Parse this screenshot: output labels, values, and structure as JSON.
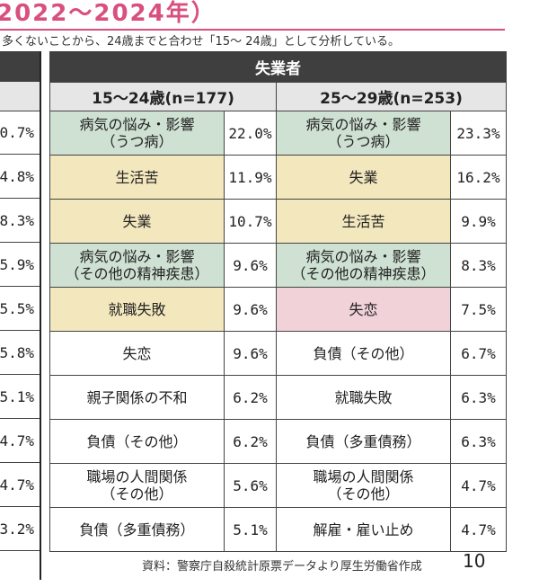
{
  "title": "2022～2024年）",
  "note": "多くないことから、24歳までと合わせ「15～ 24歳」として分析している。",
  "left_column_values": [
    "0.7%",
    "4.8%",
    "8.3%",
    "5.9%",
    "5.5%",
    "5.8%",
    "5.1%",
    "4.7%",
    "4.7%",
    "3.2%"
  ],
  "table": {
    "header": "失業者",
    "groups": [
      {
        "label": "15～24歳(n=177)",
        "rows": [
          {
            "reason": "病気の悩み・影響\n（うつ病）",
            "pct": "22.0%",
            "color": "#cfe1d3"
          },
          {
            "reason": "生活苦",
            "pct": "11.9%",
            "color": "#f3e7bd"
          },
          {
            "reason": "失業",
            "pct": "10.7%",
            "color": "#f3e7bd"
          },
          {
            "reason": "病気の悩み・影響\n（その他の精神疾患）",
            "pct": "9.6%",
            "color": "#cfe1d3"
          },
          {
            "reason": "就職失敗",
            "pct": "9.6%",
            "color": "#f3e7bd"
          },
          {
            "reason": "失恋",
            "pct": "9.6%",
            "color": "#ffffff"
          },
          {
            "reason": "親子関係の不和",
            "pct": "6.2%",
            "color": "#ffffff"
          },
          {
            "reason": "負債（その他）",
            "pct": "6.2%",
            "color": "#ffffff"
          },
          {
            "reason": "職場の人間関係\n（その他）",
            "pct": "5.6%",
            "color": "#ffffff"
          },
          {
            "reason": "負債（多重債務）",
            "pct": "5.1%",
            "color": "#ffffff"
          }
        ]
      },
      {
        "label": "25～29歳(n=253)",
        "rows": [
          {
            "reason": "病気の悩み・影響\n（うつ病）",
            "pct": "23.3%",
            "color": "#cfe1d3"
          },
          {
            "reason": "失業",
            "pct": "16.2%",
            "color": "#f3e7bd"
          },
          {
            "reason": "生活苦",
            "pct": "9.9%",
            "color": "#f3e7bd"
          },
          {
            "reason": "病気の悩み・影響\n（その他の精神疾患）",
            "pct": "8.3%",
            "color": "#cfe1d3"
          },
          {
            "reason": "失恋",
            "pct": "7.5%",
            "color": "#f2d2d9"
          },
          {
            "reason": "負債（その他）",
            "pct": "6.7%",
            "color": "#ffffff"
          },
          {
            "reason": "就職失敗",
            "pct": "6.3%",
            "color": "#ffffff"
          },
          {
            "reason": "負債（多重債務）",
            "pct": "6.3%",
            "color": "#ffffff"
          },
          {
            "reason": "職場の人間関係\n（その他）",
            "pct": "4.7%",
            "color": "#ffffff"
          },
          {
            "reason": "解雇・雇い止め",
            "pct": "4.7%",
            "color": "#ffffff"
          }
        ]
      }
    ]
  },
  "source": "資料：警察庁自殺統計原票データより厚生労働省作成",
  "page_number": "10"
}
